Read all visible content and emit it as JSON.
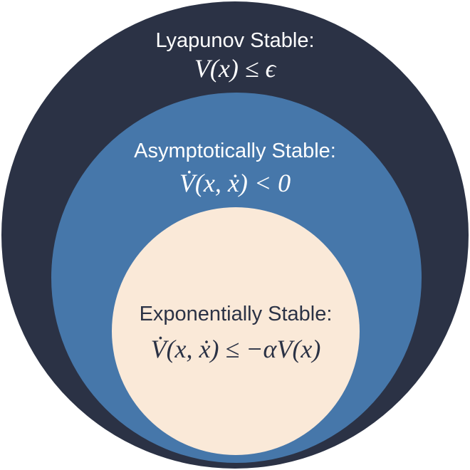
{
  "colors": {
    "outer_fill": "#2b3245",
    "middle_fill": "#4677aa",
    "inner_fill": "#fae9d8",
    "outer_text": "#ffffff",
    "middle_text": "#ffffff",
    "inner_text": "#2b3245"
  },
  "regions": {
    "lyapunov": {
      "heading": "Lyapunov Stable:",
      "condition": "V(x) ≤ ϵ"
    },
    "asymptotic": {
      "heading": "Asymptotically Stable:",
      "condition": "V̇(x, ẋ) < 0"
    },
    "exponential": {
      "heading": "Exponentially Stable:",
      "condition": "V̇(x, ẋ) ≤ −αV(x)"
    }
  }
}
